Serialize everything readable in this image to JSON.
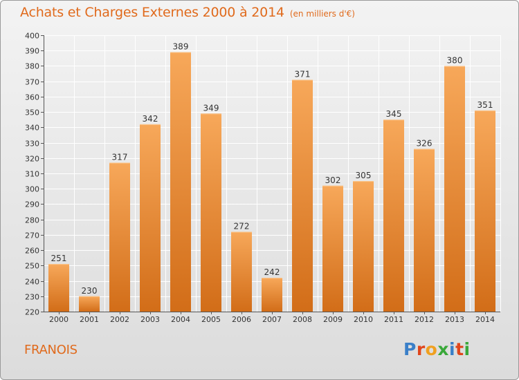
{
  "title": "Achats et Charges Externes 2000 à 2014",
  "unit_note": "(en milliers d'€)",
  "commune": "FRANOIS",
  "logo": {
    "text": "Proxiti",
    "letters": [
      {
        "ch": "P",
        "color": "#3a7fc8"
      },
      {
        "ch": "r",
        "color": "#e0461c"
      },
      {
        "ch": "o",
        "color": "#f0a020"
      },
      {
        "ch": "x",
        "color": "#3aa83a"
      },
      {
        "ch": "i",
        "color": "#3a7fc8"
      },
      {
        "ch": "t",
        "color": "#e0461c"
      },
      {
        "ch": "i",
        "color": "#3aa83a"
      }
    ]
  },
  "colors": {
    "bar_top": "#f7a85a",
    "bar_bottom": "#d26d18",
    "title": "#e06a1c",
    "grid": "#ffffff",
    "axis": "#555555",
    "text": "#333333"
  },
  "chart_data": {
    "type": "bar",
    "title": "Achats et Charges Externes 2000 à 2014",
    "subtitle": "(en milliers d'€)",
    "categories": [
      "2000",
      "2001",
      "2002",
      "2003",
      "2004",
      "2005",
      "2006",
      "2007",
      "2008",
      "2009",
      "2010",
      "2011",
      "2012",
      "2013",
      "2014"
    ],
    "values": [
      251,
      230,
      317,
      342,
      389,
      349,
      272,
      242,
      371,
      302,
      305,
      345,
      326,
      380,
      351
    ],
    "ylim": [
      220,
      400
    ],
    "ytick_step": 10,
    "grid": true,
    "xlabel": "",
    "ylabel": ""
  }
}
